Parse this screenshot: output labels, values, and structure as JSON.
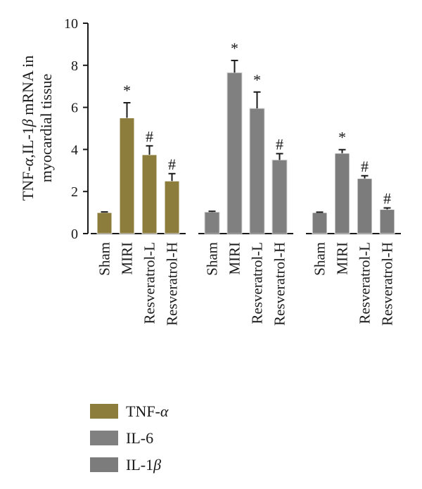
{
  "chart_data": {
    "type": "bar",
    "ylabel": "TNF-α,IL-1β mRNA in myocardial tissue",
    "ylabel_lines": [
      [
        {
          "t": "TNF-"
        },
        {
          "t": "α",
          "i": true
        },
        {
          "t": ",IL-1"
        },
        {
          "t": "β",
          "i": true
        },
        {
          "t": " mRNA in"
        }
      ],
      [
        {
          "t": "myocardial tissue"
        }
      ]
    ],
    "ylim": [
      0,
      10
    ],
    "yticks": [
      "0",
      "2",
      "4",
      "6",
      "8",
      "10"
    ],
    "categories": [
      "Sham",
      "MIRI",
      "Resveratrol-L",
      "Resveratrol-H"
    ],
    "grid": false,
    "legend_position": "bottom-left",
    "series": [
      {
        "name": "TNF-α",
        "name_parts": [
          {
            "t": "TNF-"
          },
          {
            "t": "α",
            "i": true
          }
        ],
        "color": "#8d7d3c",
        "values": [
          1.0,
          5.5,
          3.75,
          2.5
        ],
        "errors": [
          0.03,
          0.72,
          0.42,
          0.35
        ],
        "markers": [
          "",
          "*",
          "#",
          "#"
        ]
      },
      {
        "name": "IL-6",
        "name_parts": [
          {
            "t": "IL-6"
          }
        ],
        "color": "#808080",
        "values": [
          1.02,
          7.65,
          5.95,
          3.5
        ],
        "errors": [
          0.04,
          0.58,
          0.78,
          0.3
        ],
        "markers": [
          "",
          "*",
          "*",
          "#"
        ]
      },
      {
        "name": "IL-1β",
        "name_parts": [
          {
            "t": "IL-1"
          },
          {
            "t": "β",
            "i": true
          }
        ],
        "color": "#7c7c7c",
        "values": [
          1.0,
          3.82,
          2.62,
          1.15
        ],
        "errors": [
          0.02,
          0.17,
          0.13,
          0.07
        ],
        "markers": [
          "",
          "*",
          "#",
          "#"
        ]
      }
    ]
  }
}
